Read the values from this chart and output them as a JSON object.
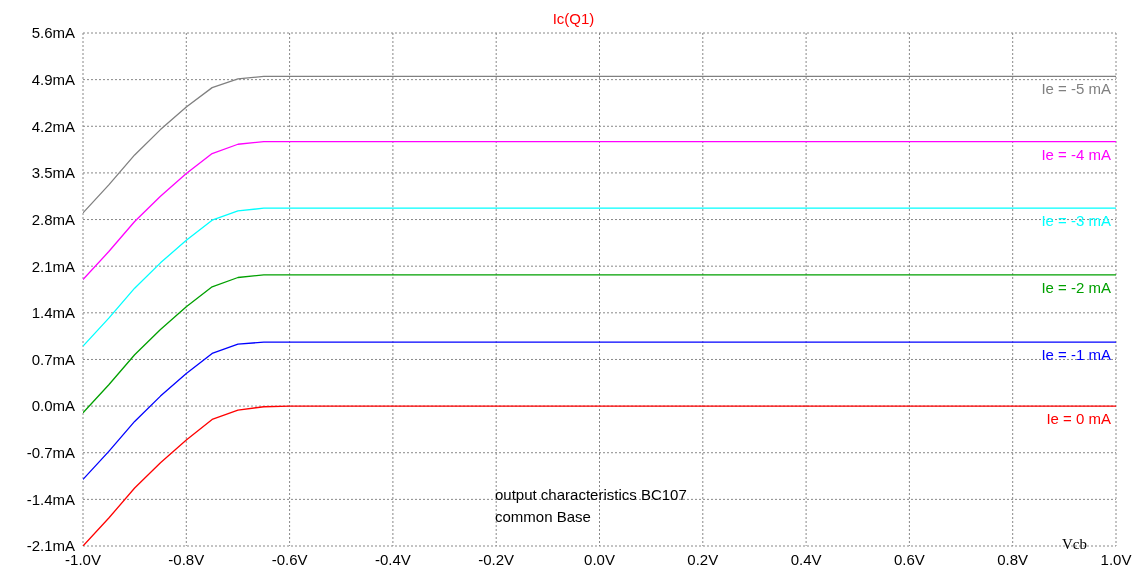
{
  "chart_data": {
    "type": "line",
    "title": "Ic(Q1)",
    "xlabel": "Vcb",
    "x": [
      -1.0,
      -0.95,
      -0.9,
      -0.85,
      -0.8,
      -0.75,
      -0.7,
      -0.65,
      -0.6,
      1.0
    ],
    "series": [
      {
        "name": "Ie = -5 mA",
        "color": "#808080",
        "values": [
          2.9,
          3.32,
          3.77,
          4.15,
          4.49,
          4.78,
          4.91,
          4.95,
          4.95,
          4.95
        ]
      },
      {
        "name": "Ie = -4 mA",
        "color": "#ff00ff",
        "values": [
          1.9,
          2.32,
          2.77,
          3.15,
          3.49,
          3.79,
          3.93,
          3.97,
          3.97,
          3.97
        ]
      },
      {
        "name": "Ie = -3 mA",
        "color": "#00ffff",
        "values": [
          0.9,
          1.32,
          1.77,
          2.15,
          2.49,
          2.79,
          2.93,
          2.97,
          2.97,
          2.97
        ]
      },
      {
        "name": "Ie = -2 mA",
        "color": "#00a000",
        "values": [
          -0.1,
          0.32,
          0.77,
          1.15,
          1.49,
          1.79,
          1.93,
          1.97,
          1.97,
          1.97
        ]
      },
      {
        "name": "Ie = -1 mA",
        "color": "#0000ff",
        "values": [
          -1.1,
          -0.68,
          -0.23,
          0.15,
          0.49,
          0.79,
          0.93,
          0.96,
          0.96,
          0.96
        ]
      },
      {
        "name": "Ie = 0 mA",
        "color": "#ff0000",
        "values": [
          -2.1,
          -1.68,
          -1.23,
          -0.85,
          -0.51,
          -0.2,
          -0.06,
          -0.01,
          0,
          0
        ]
      }
    ],
    "xlim": [
      -1.0,
      1.0
    ],
    "xticks": [
      {
        "value": -1.0,
        "label": "-1.0V"
      },
      {
        "value": -0.8,
        "label": "-0.8V"
      },
      {
        "value": -0.6,
        "label": "-0.6V"
      },
      {
        "value": -0.4,
        "label": "-0.4V"
      },
      {
        "value": -0.2,
        "label": "-0.2V"
      },
      {
        "value": 0,
        "label": "0.0V"
      },
      {
        "value": 0.2,
        "label": "0.2V"
      },
      {
        "value": 0.4,
        "label": "0.4V"
      },
      {
        "value": 0.6,
        "label": "0.6V"
      },
      {
        "value": 0.8,
        "label": "0.8V"
      },
      {
        "value": 1.0,
        "label": "1.0V"
      }
    ],
    "ylim": [
      -2.1,
      5.6
    ],
    "yticks": [
      {
        "value": -2.1,
        "label": "-2.1mA"
      },
      {
        "value": -1.4,
        "label": "-1.4mA"
      },
      {
        "value": -0.7,
        "label": "-0.7mA"
      },
      {
        "value": 0,
        "label": "0.0mA"
      },
      {
        "value": 0.7,
        "label": "0.7mA"
      },
      {
        "value": 1.4,
        "label": "1.4mA"
      },
      {
        "value": 2.1,
        "label": "2.1mA"
      },
      {
        "value": 2.8,
        "label": "2.8mA"
      },
      {
        "value": 3.5,
        "label": "3.5mA"
      },
      {
        "value": 4.2,
        "label": "4.2mA"
      },
      {
        "value": 4.9,
        "label": "4.9mA"
      },
      {
        "value": 5.6,
        "label": "5.6mA"
      }
    ],
    "grid": true,
    "legend": false,
    "marker": "none",
    "line_style": "solid",
    "annotations": [
      "output characteristics BC107",
      "common Base"
    ]
  }
}
